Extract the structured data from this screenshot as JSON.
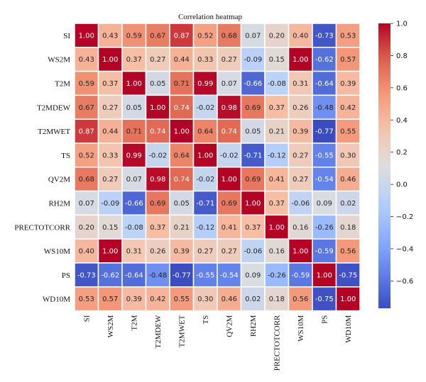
{
  "chart_data": {
    "type": "heatmap",
    "title": "Correlation heatmap",
    "labels": [
      "SI",
      "WS2M",
      "T2M",
      "T2MDEW",
      "T2MWET",
      "TS",
      "QV2M",
      "RH2M",
      "PRECTOTCORR",
      "WS10M",
      "PS",
      "WD10M"
    ],
    "matrix": [
      [
        1.0,
        0.43,
        0.59,
        0.67,
        0.87,
        0.52,
        0.68,
        0.07,
        0.2,
        0.4,
        -0.73,
        0.53
      ],
      [
        0.43,
        1.0,
        0.37,
        0.27,
        0.44,
        0.33,
        0.27,
        -0.09,
        0.15,
        1.0,
        -0.62,
        0.57
      ],
      [
        0.59,
        0.37,
        1.0,
        0.05,
        0.71,
        0.99,
        0.07,
        -0.66,
        -0.08,
        0.31,
        -0.64,
        0.39
      ],
      [
        0.67,
        0.27,
        0.05,
        1.0,
        0.74,
        -0.02,
        0.98,
        0.69,
        0.37,
        0.26,
        -0.48,
        0.42
      ],
      [
        0.87,
        0.44,
        0.71,
        0.74,
        1.0,
        0.64,
        0.74,
        0.05,
        0.21,
        0.39,
        -0.77,
        0.55
      ],
      [
        0.52,
        0.33,
        0.99,
        -0.02,
        0.64,
        1.0,
        -0.02,
        -0.71,
        -0.12,
        0.27,
        -0.55,
        0.3
      ],
      [
        0.68,
        0.27,
        0.07,
        0.98,
        0.74,
        -0.02,
        1.0,
        0.69,
        0.41,
        0.27,
        -0.54,
        0.46
      ],
      [
        0.07,
        -0.09,
        -0.66,
        0.69,
        0.05,
        -0.71,
        0.69,
        1.0,
        0.37,
        -0.06,
        0.09,
        0.02
      ],
      [
        0.2,
        0.15,
        -0.08,
        0.37,
        0.21,
        -0.12,
        0.41,
        0.37,
        1.0,
        0.16,
        -0.26,
        0.18
      ],
      [
        0.4,
        1.0,
        0.31,
        0.26,
        0.39,
        0.27,
        0.27,
        -0.06,
        0.16,
        1.0,
        -0.59,
        0.56
      ],
      [
        -0.73,
        -0.62,
        -0.64,
        -0.48,
        -0.77,
        -0.55,
        -0.54,
        0.09,
        -0.26,
        -0.59,
        1.0,
        -0.75
      ],
      [
        0.53,
        0.57,
        0.39,
        0.42,
        0.55,
        0.3,
        0.46,
        0.02,
        0.18,
        0.56,
        -0.75,
        1.0
      ]
    ],
    "colormap": "coolwarm",
    "vmin": -0.77,
    "vmax": 1.0,
    "colorbar_ticks": [
      "1.0",
      "0.8",
      "0.6",
      "0.4",
      "0.2",
      "0.0",
      "−0.2",
      "−0.4",
      "−0.6"
    ],
    "colorbar_tick_values": [
      1.0,
      0.8,
      0.6,
      0.4,
      0.2,
      0.0,
      -0.2,
      -0.4,
      -0.6
    ],
    "annotations": true,
    "grid_lines": "white",
    "colors": {
      "low": "#3b4cc0",
      "mid": "#dddddd",
      "high": "#b40426"
    }
  }
}
